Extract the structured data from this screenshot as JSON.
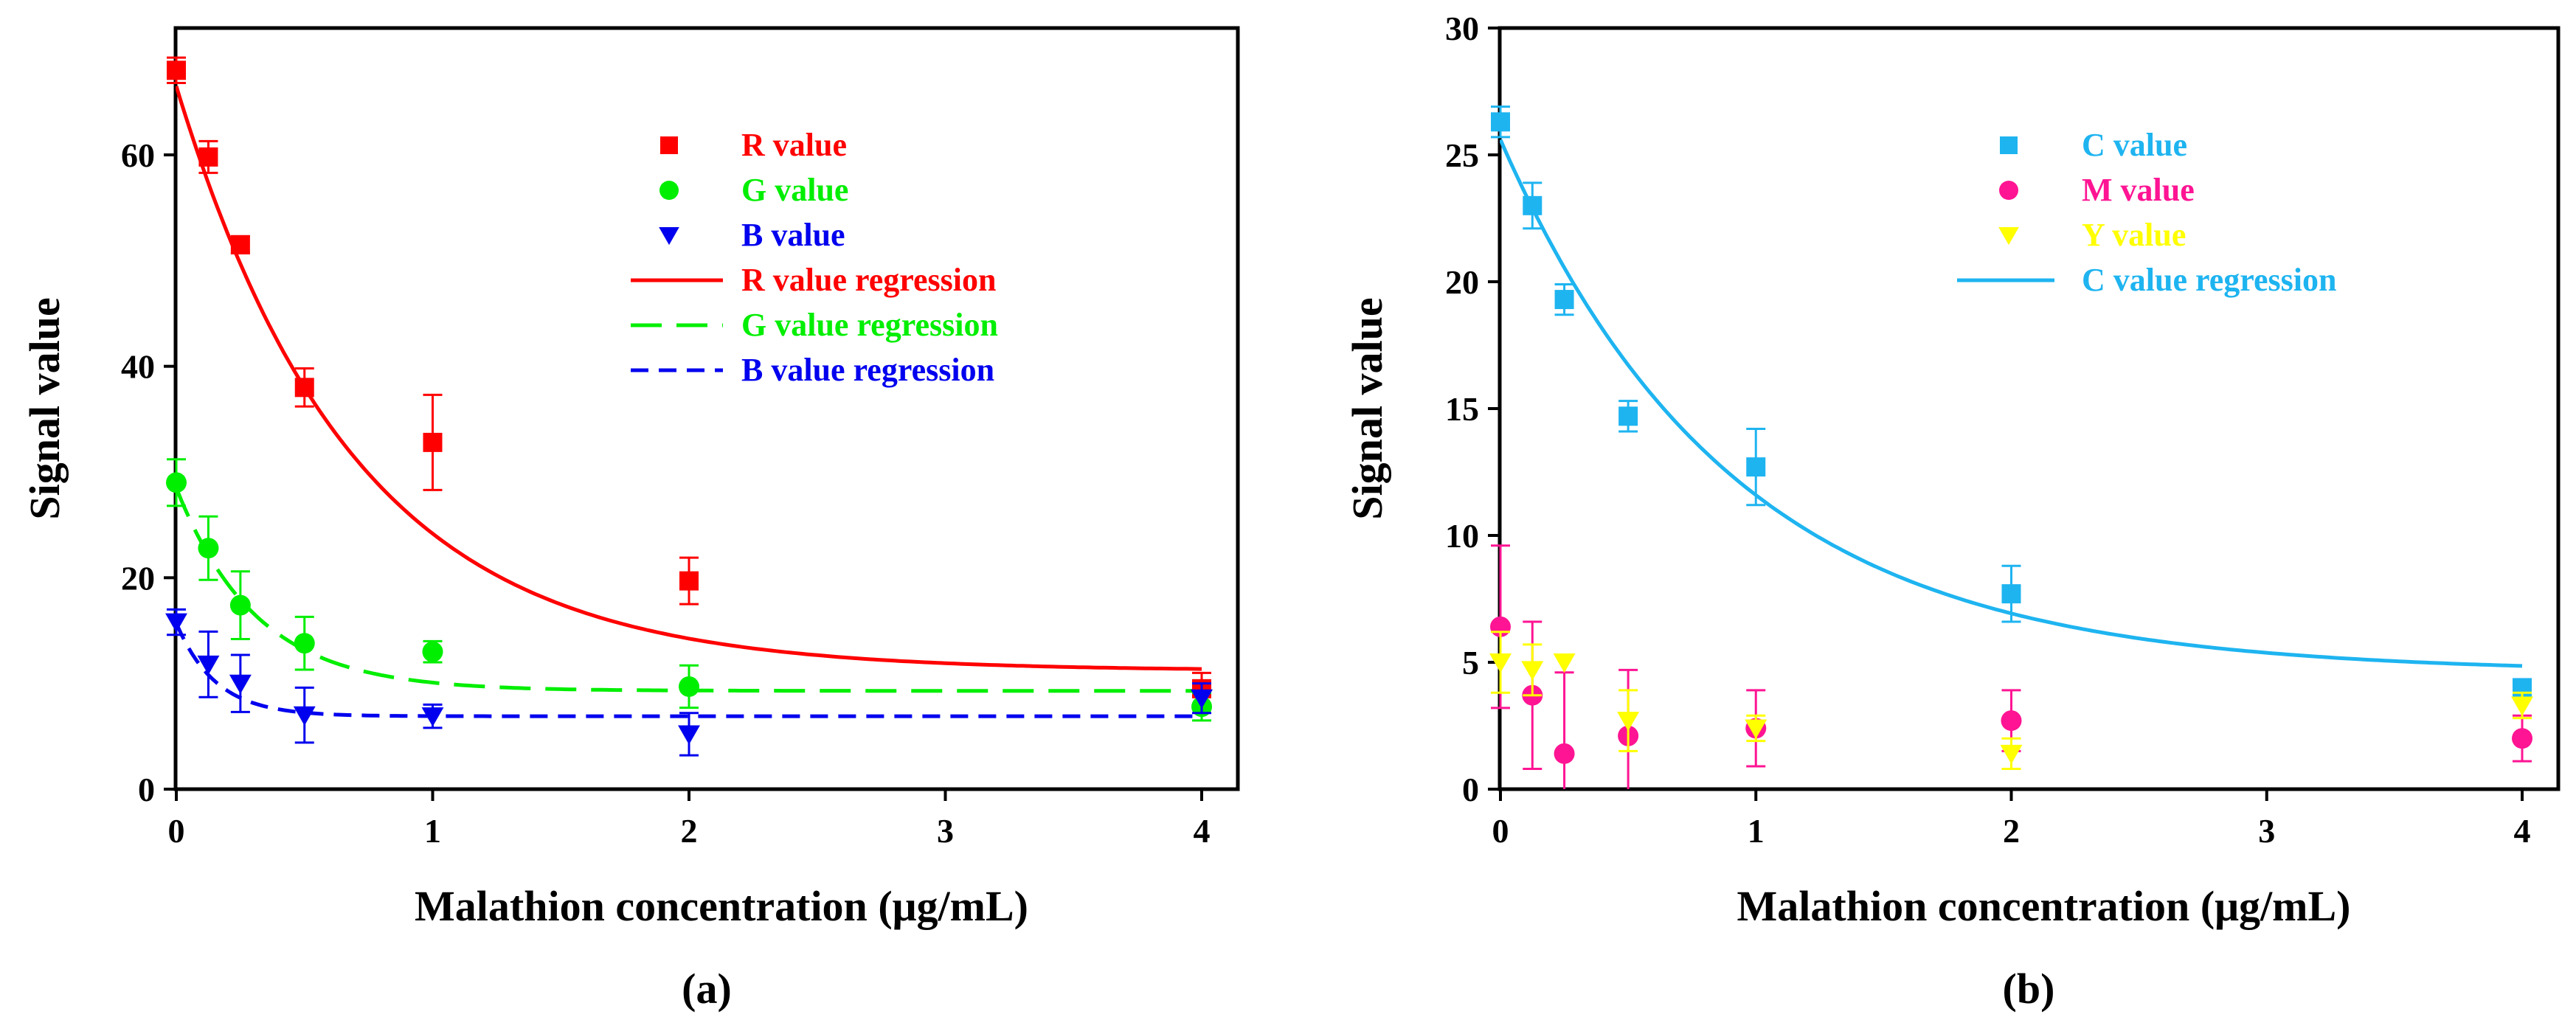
{
  "chart_data": [
    {
      "type": "scatter",
      "panel_label": "(a)",
      "xlabel": "Malathion concentration (μg/mL)",
      "ylabel": "Signal  value",
      "xlim": [
        0,
        4
      ],
      "ylim": [
        0,
        72
      ],
      "x_ticks": [
        0,
        1,
        2,
        3,
        4
      ],
      "y_ticks": [
        0,
        20,
        40,
        60
      ],
      "grid": false,
      "legend_position": "top-right",
      "x": [
        0,
        0.125,
        0.25,
        0.5,
        1,
        2,
        4
      ],
      "series": [
        {
          "name": "R value",
          "marker": "square",
          "color": "#ff0000",
          "values": [
            68,
            59.8,
            51.5,
            38,
            32.8,
            19.7,
            9.5
          ],
          "errors": [
            1.2,
            1.5,
            0.8,
            1.8,
            4.5,
            2.2,
            1.5
          ]
        },
        {
          "name": "G value",
          "marker": "circle",
          "color": "#00ee00",
          "values": [
            29,
            22.8,
            17.4,
            13.8,
            13,
            9.7,
            7.8
          ],
          "errors": [
            2.2,
            3,
            3.2,
            2.5,
            1,
            2,
            1.3
          ]
        },
        {
          "name": "B value",
          "marker": "triangle-down",
          "color": "#0000ee",
          "values": [
            15.8,
            11.8,
            10,
            7,
            6.9,
            5.2,
            8.6
          ],
          "errors": [
            1.2,
            3.1,
            2.7,
            2.6,
            1.1,
            2,
            1.4
          ]
        }
      ],
      "regressions": [
        {
          "name": "R value regression",
          "color": "#ff0000",
          "dash": "solid",
          "model": "y0 + a*exp(-b*x)",
          "y0": 11.2,
          "a": 55.3,
          "b": 1.45
        },
        {
          "name": "G value regression",
          "color": "#00ee00",
          "dash": "long",
          "model": "y0 + a*exp(-b*x)",
          "y0": 9.3,
          "a": 19.2,
          "b": 3.2
        },
        {
          "name": "B value regression",
          "color": "#0000ee",
          "dash": "short",
          "model": "y0 + a*exp(-b*x)",
          "y0": 6.9,
          "a": 8.8,
          "b": 6.5
        }
      ]
    },
    {
      "type": "scatter",
      "panel_label": "(b)",
      "xlabel": "Malathion concentration (μg/mL)",
      "ylabel": "Signal  value",
      "xlim": [
        0,
        4
      ],
      "ylim": [
        0,
        30
      ],
      "x_ticks": [
        0,
        1,
        2,
        3,
        4
      ],
      "y_ticks": [
        0,
        5,
        10,
        15,
        20,
        25,
        30
      ],
      "grid": false,
      "legend_position": "top-right",
      "x": [
        0,
        0.125,
        0.25,
        0.5,
        1,
        2,
        4
      ],
      "series": [
        {
          "name": "C value",
          "marker": "square",
          "color": "#1eb4f0",
          "values": [
            26.3,
            23,
            19.3,
            14.7,
            12.7,
            7.7,
            4
          ],
          "errors": [
            0.6,
            0.9,
            0.6,
            0.6,
            1.5,
            1.1,
            0.3
          ]
        },
        {
          "name": "M value",
          "marker": "circle",
          "color": "#ff1493",
          "values": [
            6.4,
            3.7,
            1.4,
            2.1,
            2.4,
            2.7,
            2
          ],
          "errors": [
            3.2,
            2.9,
            3.2,
            2.6,
            1.5,
            1.2,
            0.9
          ]
        },
        {
          "name": "Y value",
          "marker": "triangle-down",
          "color": "#ffff00",
          "values": [
            5,
            4.7,
            5,
            2.7,
            2.4,
            1.4,
            3.3
          ],
          "errors": [
            1.2,
            1,
            0,
            1.2,
            0.5,
            0.6,
            0.5
          ]
        }
      ],
      "regressions": [
        {
          "name": "C value regression",
          "color": "#1eb4f0",
          "dash": "solid",
          "model": "y0 + a*exp(-b*x)",
          "y0": 4.6,
          "a": 21,
          "b": 1.1
        }
      ]
    }
  ]
}
